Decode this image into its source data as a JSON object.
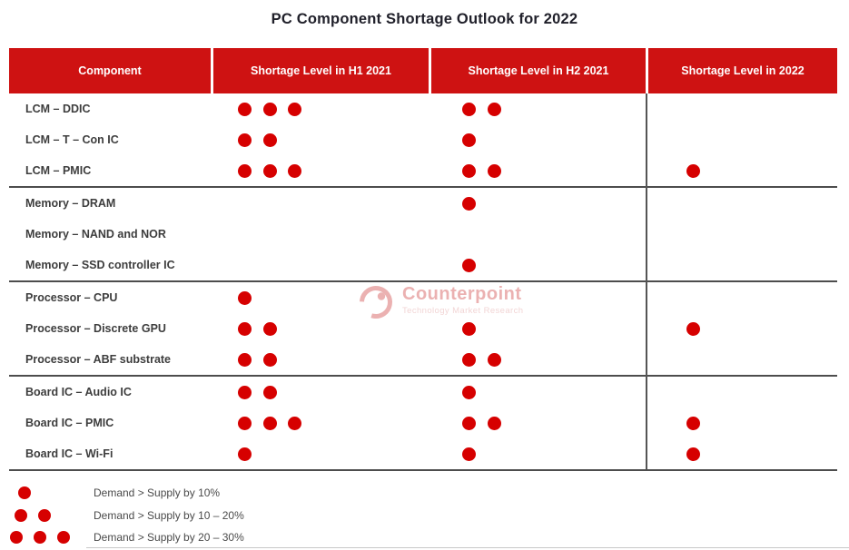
{
  "title": "PC Component Shortage Outlook for 2022",
  "colors": {
    "header_bg": "#CE1212",
    "header_text": "#FFFFFF",
    "dot_red": "#D60000",
    "row_label": "#3D3D3D",
    "separator_line": "#4D4D4D",
    "title_text": "#20202A",
    "watermark_red": "#D04848"
  },
  "chart_data": {
    "type": "table",
    "title": "PC Component Shortage Outlook for 2022",
    "columns": [
      "Component",
      "Shortage Level in H1 2021",
      "Shortage Level in H2 2021",
      "Shortage Level in 2022"
    ],
    "dot_unit": "shortage level dots per legend (1 = 10%, 2 = 10–20%, 3 = 20–30%)",
    "groups": [
      {
        "name": "LCM",
        "rows": [
          {
            "label": "LCM – DDIC",
            "dots": [
              3,
              2,
              0
            ]
          },
          {
            "label": "LCM – T – Con IC",
            "dots": [
              2,
              1,
              0
            ]
          },
          {
            "label": "LCM – PMIC",
            "dots": [
              3,
              2,
              1
            ]
          }
        ]
      },
      {
        "name": "Memory",
        "rows": [
          {
            "label": "Memory – DRAM",
            "dots": [
              0,
              1,
              0
            ]
          },
          {
            "label": "Memory – NAND and NOR",
            "dots": [
              0,
              0,
              0
            ]
          },
          {
            "label": "Memory – SSD controller IC",
            "dots": [
              0,
              1,
              0
            ]
          }
        ]
      },
      {
        "name": "Processor",
        "rows": [
          {
            "label": "Processor – CPU",
            "dots": [
              1,
              0,
              0
            ]
          },
          {
            "label": "Processor – Discrete GPU",
            "dots": [
              2,
              1,
              1
            ]
          },
          {
            "label": "Processor – ABF substrate",
            "dots": [
              2,
              2,
              0
            ]
          }
        ]
      },
      {
        "name": "Board IC",
        "rows": [
          {
            "label": "Board IC – Audio IC",
            "dots": [
              2,
              1,
              0
            ]
          },
          {
            "label": "Board IC – PMIC",
            "dots": [
              3,
              2,
              1
            ]
          },
          {
            "label": "Board IC – Wi-Fi",
            "dots": [
              1,
              1,
              1
            ]
          }
        ]
      }
    ],
    "legend": [
      {
        "dots": 1,
        "label": "Demand > Supply by 10%"
      },
      {
        "dots": 2,
        "label": "Demand > Supply by 10 – 20%"
      },
      {
        "dots": 3,
        "label": "Demand > Supply by 20 – 30%"
      }
    ]
  },
  "watermark": {
    "brand": "Counterpoint",
    "tagline": "Technology Market Research"
  }
}
